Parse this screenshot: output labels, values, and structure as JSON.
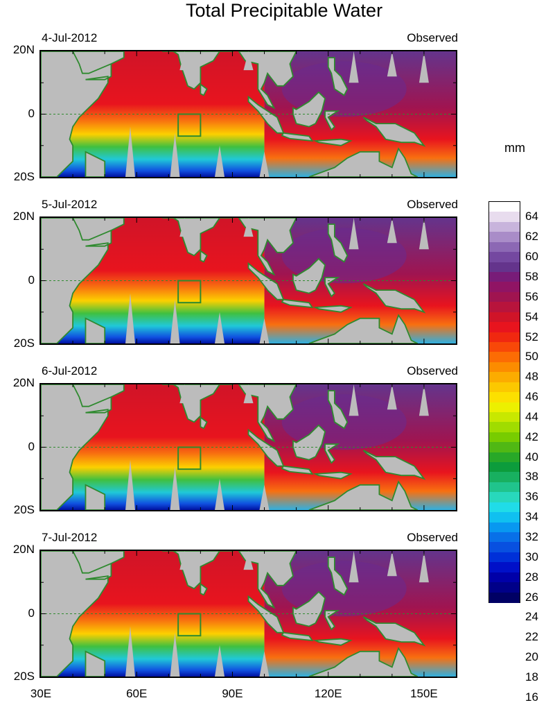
{
  "title": "Total Precipitable Water",
  "units": "mm",
  "panels": [
    {
      "date": "4-Jul-2012",
      "label": "Observed"
    },
    {
      "date": "5-Jul-2012",
      "label": "Observed"
    },
    {
      "date": "6-Jul-2012",
      "label": "Observed"
    },
    {
      "date": "7-Jul-2012",
      "label": "Observed"
    }
  ],
  "lat_labels": {
    "north": "20N",
    "equator": "0",
    "south": "20S"
  },
  "lon_labels": [
    "30E",
    "60E",
    "90E",
    "120E",
    "150E"
  ],
  "colorbar": {
    "labels": [
      "64",
      "62",
      "60",
      "58",
      "56",
      "54",
      "52",
      "50",
      "48",
      "46",
      "44",
      "42",
      "40",
      "38",
      "36",
      "34",
      "32",
      "30",
      "28",
      "26",
      "24",
      "22",
      "20",
      "18",
      "16"
    ],
    "colors": [
      "#ffffff",
      "#e8dcee",
      "#c8b4dc",
      "#a98cc8",
      "#8c68b4",
      "#7448a0",
      "#64348c",
      "#781c78",
      "#901464",
      "#a01450",
      "#b8143c",
      "#d01428",
      "#e8141e",
      "#f02810",
      "#f84808",
      "#fc6c04",
      "#fc8c00",
      "#fcac00",
      "#fcc800",
      "#fce000",
      "#ecf000",
      "#c8e800",
      "#a0dc00",
      "#78cc00",
      "#50b814",
      "#28a828",
      "#0c9c3c",
      "#18b060",
      "#20c48c",
      "#28d8bc",
      "#20dce8",
      "#10c0f0",
      "#0898f0",
      "#0870e8",
      "#0850e0",
      "#0030d8",
      "#0010c8",
      "#0000a8",
      "#000088",
      "#000064"
    ]
  },
  "box": {
    "lon": [
      73,
      80
    ],
    "lat": [
      -7,
      0
    ]
  },
  "map_extent": {
    "lon": [
      30,
      160
    ],
    "lat": [
      -20,
      20
    ]
  }
}
